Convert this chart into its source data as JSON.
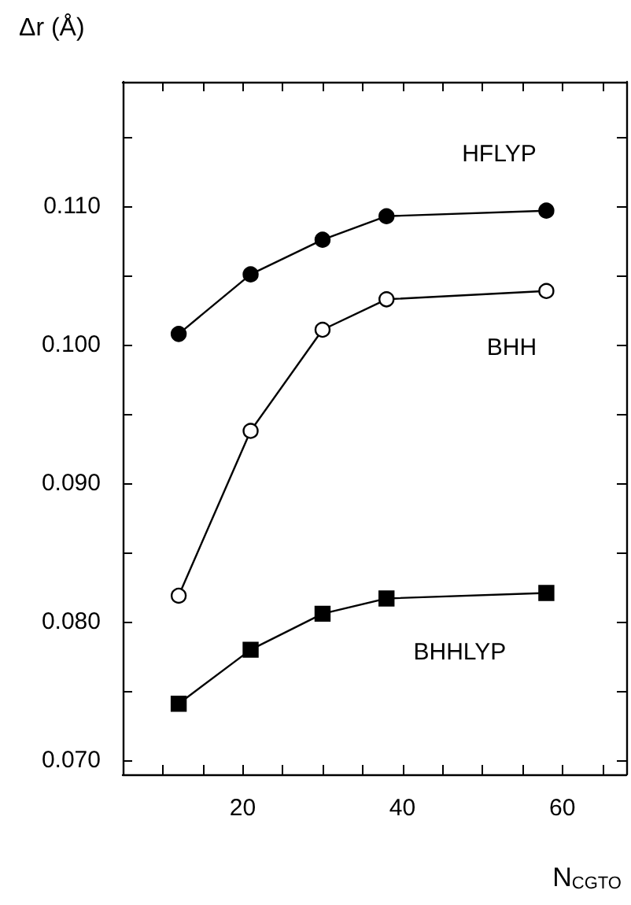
{
  "chart_data": {
    "type": "line",
    "xlabel": "N$_{CGTO}$",
    "ylabel": "Δr (Å)",
    "x": [
      12,
      21,
      30,
      38,
      58
    ],
    "series": [
      {
        "name": "HFLYP",
        "color": "#000000",
        "marker": "circle",
        "values": [
          0.1008,
          0.1051,
          0.1076,
          0.1093,
          0.1097
        ]
      },
      {
        "name": "BHH",
        "color": "#000000",
        "marker": "circle",
        "colors": [
          "#ffffff",
          "#ffffff",
          "#ffffff",
          "#ffffff",
          "#ffffff"
        ],
        "values": [
          0.0819,
          0.0938,
          0.1011,
          0.1033,
          0.1039
        ]
      },
      {
        "name": "BHHLYP",
        "color": "#000000",
        "marker": "square",
        "values": [
          0.0741,
          0.078,
          0.0806,
          0.0817,
          0.0821
        ]
      }
    ],
    "xlim": [
      5,
      68
    ],
    "xticks": [
      {
        "value": 10,
        "label": null
      },
      {
        "value": 15,
        "label": null
      },
      20,
      {
        "value": 25,
        "label": null
      },
      {
        "value": 30,
        "label": null
      },
      {
        "value": 35,
        "label": null
      },
      40,
      {
        "value": 45,
        "label": null
      },
      {
        "value": 50,
        "label": null
      },
      {
        "value": 55,
        "label": null
      },
      60,
      {
        "value": 65,
        "label": null
      }
    ],
    "ylim": [
      0.069,
      0.119
    ],
    "yticks": [
      {
        "value": 0.07,
        "label": "0.070"
      },
      {
        "value": 0.075,
        "label": null
      },
      {
        "value": 0.08,
        "label": "0.080"
      },
      {
        "value": 0.085,
        "label": null
      },
      {
        "value": 0.09,
        "label": "0.090"
      },
      {
        "value": 0.095,
        "label": null
      },
      {
        "value": 0.1,
        "label": "0.100"
      },
      {
        "value": 0.105,
        "label": null
      },
      {
        "value": 0.11,
        "label": "0.110"
      },
      {
        "value": 0.115,
        "label": null
      }
    ],
    "grid": false,
    "legend": false,
    "line_style": "solid"
  }
}
